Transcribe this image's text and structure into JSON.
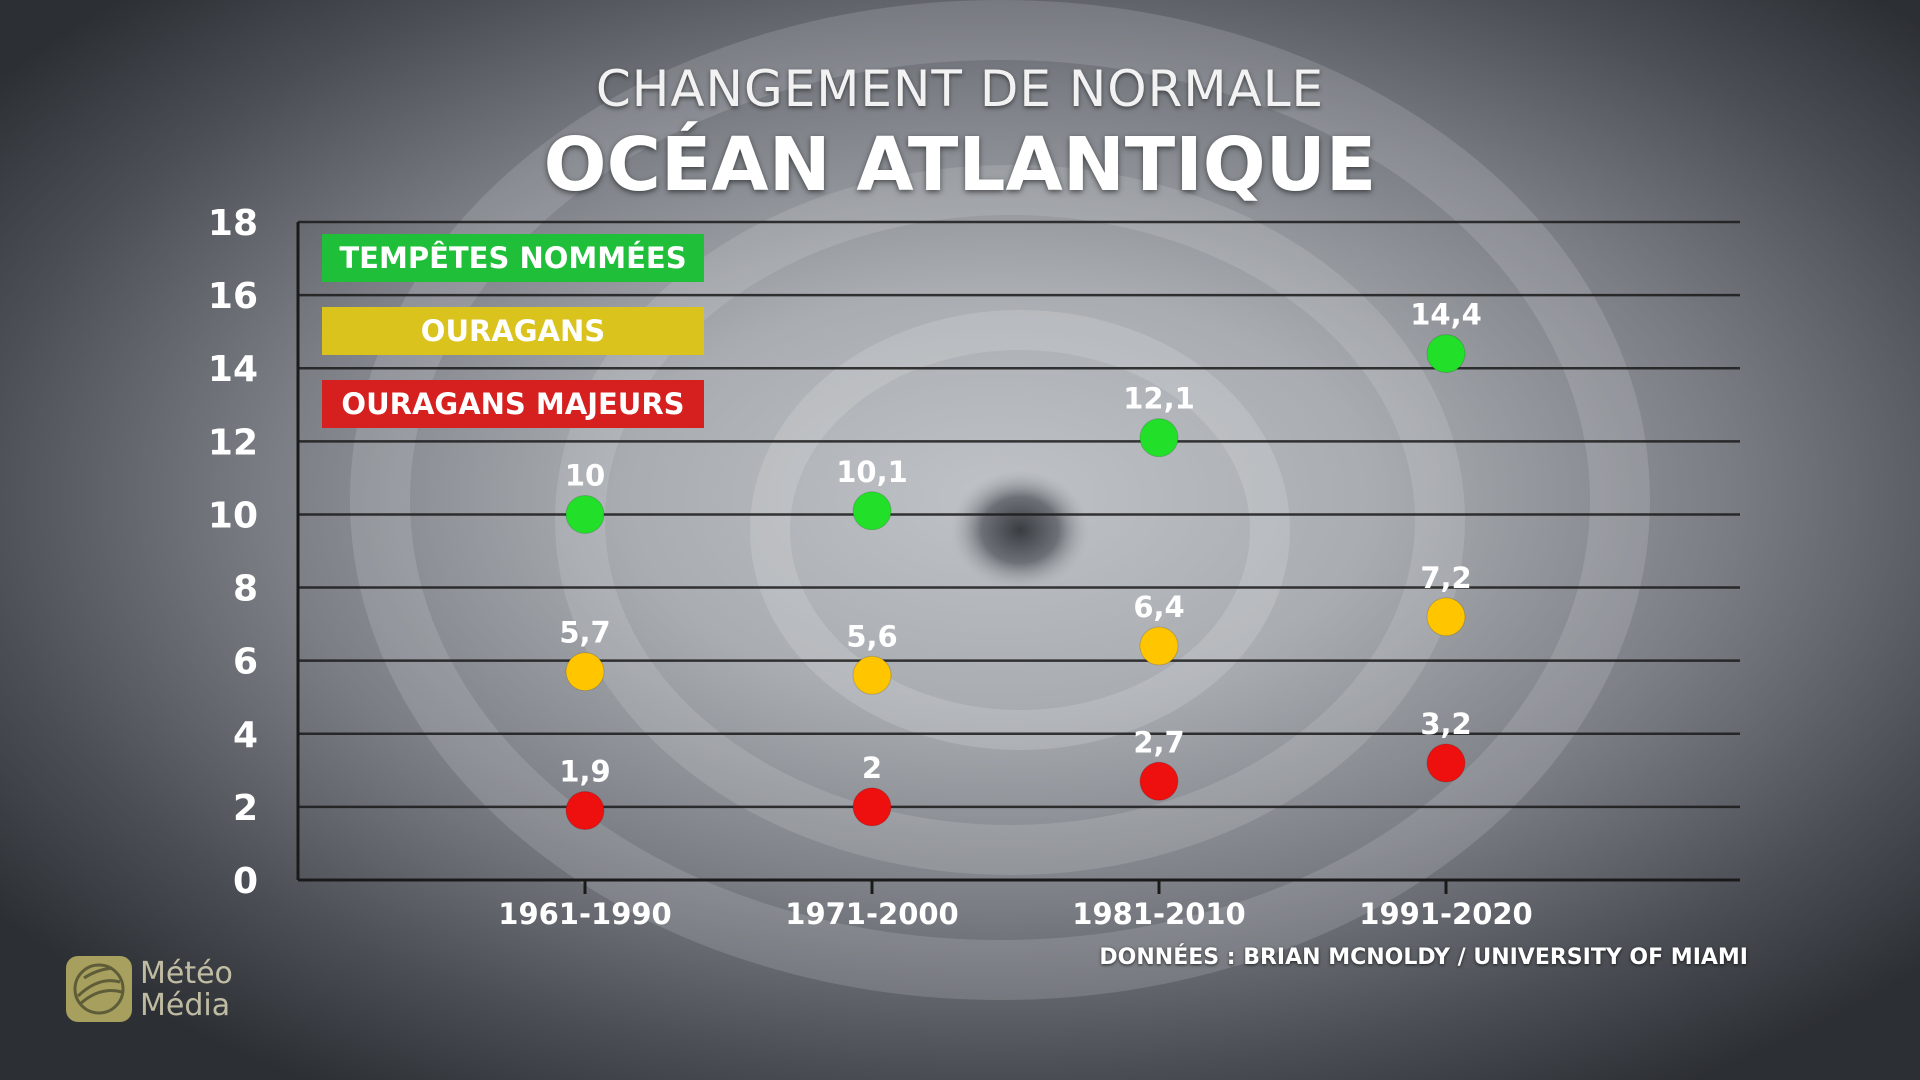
{
  "header": {
    "subtitle": "CHANGEMENT DE NORMALE",
    "title": "OCÉAN ATLANTIQUE"
  },
  "legend": {
    "items": [
      {
        "label": "TEMPÊTES NOMMÉES",
        "color": "#1fbf3a"
      },
      {
        "label": "OURAGANS",
        "color": "#d9c31c"
      },
      {
        "label": "OURAGANS MAJEURS",
        "color": "#d62020"
      }
    ]
  },
  "source": "DONNÉES : BRIAN MCNOLDY / UNIVERSITY OF MIAMI",
  "logo": {
    "line1": "Météo",
    "line2": "Média"
  },
  "chart_data": {
    "type": "scatter",
    "title": "OCÉAN ATLANTIQUE",
    "subtitle": "CHANGEMENT DE NORMALE",
    "categories": [
      "1961-1990",
      "1971-2000",
      "1981-2010",
      "1991-2020"
    ],
    "ylim": [
      0,
      18
    ],
    "yticks": [
      0,
      2,
      4,
      6,
      8,
      10,
      12,
      14,
      16,
      18
    ],
    "grid": true,
    "legend_position": "top-left",
    "series": [
      {
        "name": "TEMPÊTES NOMMÉES",
        "color": "#22e02a",
        "values": [
          10,
          10.1,
          12.1,
          14.4
        ],
        "labels": [
          "10",
          "10,1",
          "12,1",
          "14,4"
        ]
      },
      {
        "name": "OURAGANS",
        "color": "#ffc600",
        "values": [
          5.7,
          5.6,
          6.4,
          7.2
        ],
        "labels": [
          "5,7",
          "5,6",
          "6,4",
          "7,2"
        ]
      },
      {
        "name": "OURAGANS MAJEURS",
        "color": "#ee0f0f",
        "values": [
          1.9,
          2,
          2.7,
          3.2
        ],
        "labels": [
          "1,9",
          "2",
          "2,7",
          "3,2"
        ]
      }
    ]
  }
}
